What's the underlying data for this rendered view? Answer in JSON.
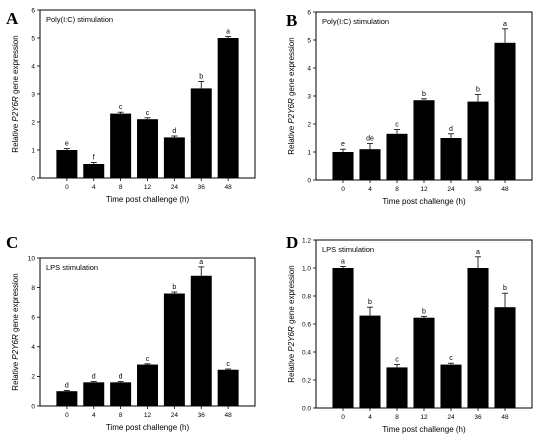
{
  "chart_data": [
    {
      "panel": "A",
      "type": "bar",
      "title": "Poly(I:C) stimulation",
      "xlabel": "Time post challenge (h)",
      "ylabel_prefix": "Relative ",
      "ylabel_gene": "P2Y6R",
      "ylabel_suffix": " gene expression",
      "categories": [
        "0",
        "4",
        "8",
        "12",
        "24",
        "36",
        "48"
      ],
      "values": [
        1.0,
        0.5,
        2.3,
        2.1,
        1.45,
        3.2,
        5.0
      ],
      "errors": [
        0.05,
        0.05,
        0.05,
        0.05,
        0.05,
        0.25,
        0.05
      ],
      "letters": [
        "e",
        "f",
        "c",
        "c",
        "d",
        "b",
        "a"
      ],
      "ylim": [
        0,
        6
      ],
      "yticks": [
        0,
        1,
        2,
        3,
        4,
        5,
        6
      ],
      "yticklabels": [
        "0",
        "1",
        "2",
        "3",
        "4",
        "5",
        "6"
      ]
    },
    {
      "panel": "B",
      "type": "bar",
      "title": "Poly(I:C) stimulation",
      "xlabel": "Time post challenge (h)",
      "ylabel_prefix": "Relative ",
      "ylabel_gene": "P2Y6R",
      "ylabel_suffix": " gene expression",
      "categories": [
        "0",
        "4",
        "8",
        "12",
        "24",
        "36",
        "48"
      ],
      "values": [
        1.0,
        1.1,
        1.65,
        2.85,
        1.5,
        2.8,
        4.9
      ],
      "errors": [
        0.1,
        0.2,
        0.15,
        0.05,
        0.15,
        0.25,
        0.5
      ],
      "letters": [
        "e",
        "de",
        "c",
        "b",
        "d",
        "b",
        "a"
      ],
      "ylim": [
        0,
        6
      ],
      "yticks": [
        0,
        1,
        2,
        3,
        4,
        5,
        6
      ],
      "yticklabels": [
        "0",
        "1",
        "2",
        "3",
        "4",
        "5",
        "6"
      ]
    },
    {
      "panel": "C",
      "type": "bar",
      "title": "LPS stimulation",
      "xlabel": "Time post challenge (h)",
      "ylabel_prefix": "Relative ",
      "ylabel_gene": "P2Y6R",
      "ylabel_suffix": " gene expression",
      "categories": [
        "0",
        "4",
        "8",
        "12",
        "24",
        "36",
        "48"
      ],
      "values": [
        1.0,
        1.6,
        1.6,
        2.8,
        7.6,
        8.8,
        2.45
      ],
      "errors": [
        0.05,
        0.05,
        0.05,
        0.05,
        0.1,
        0.6,
        0.05
      ],
      "letters": [
        "d",
        "d",
        "d",
        "c",
        "b",
        "a",
        "c"
      ],
      "ylim": [
        0,
        10
      ],
      "yticks": [
        0,
        2,
        4,
        6,
        8,
        10
      ],
      "yticklabels": [
        "0",
        "2",
        "4",
        "6",
        "8",
        "10"
      ]
    },
    {
      "panel": "D",
      "type": "bar",
      "title": "LPS stimulation",
      "xlabel": "Time post challenge (h)",
      "ylabel_prefix": "Relative ",
      "ylabel_gene": "P2Y6R",
      "ylabel_suffix": " gene expression",
      "categories": [
        "0",
        "4",
        "8",
        "12",
        "24",
        "36",
        "48"
      ],
      "values": [
        1.0,
        0.66,
        0.29,
        0.645,
        0.31,
        1.0,
        0.72
      ],
      "errors": [
        0.01,
        0.06,
        0.02,
        0.01,
        0.01,
        0.08,
        0.1
      ],
      "letters": [
        "a",
        "b",
        "c",
        "b",
        "c",
        "a",
        "b"
      ],
      "ylim": [
        0,
        1.2
      ],
      "yticks": [
        0,
        0.2,
        0.4,
        0.6,
        0.8,
        1.0,
        1.2
      ],
      "yticklabels": [
        "0.0",
        "0.2",
        "0.4",
        "0.6",
        "0.8",
        "1.0",
        "1.2"
      ]
    }
  ]
}
